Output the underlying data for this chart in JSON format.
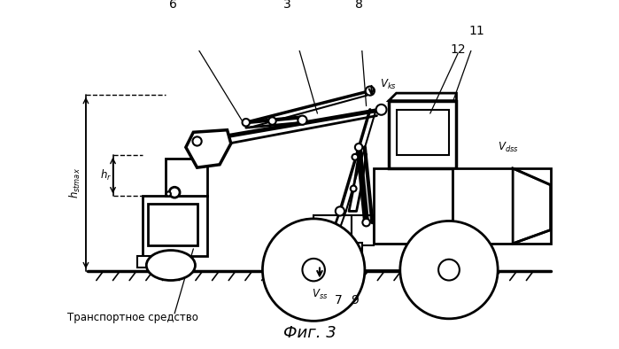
{
  "title": "Фиг. 3",
  "bg_color": "#ffffff",
  "line_color": "#000000",
  "fig_width": 6.99,
  "fig_height": 3.94
}
